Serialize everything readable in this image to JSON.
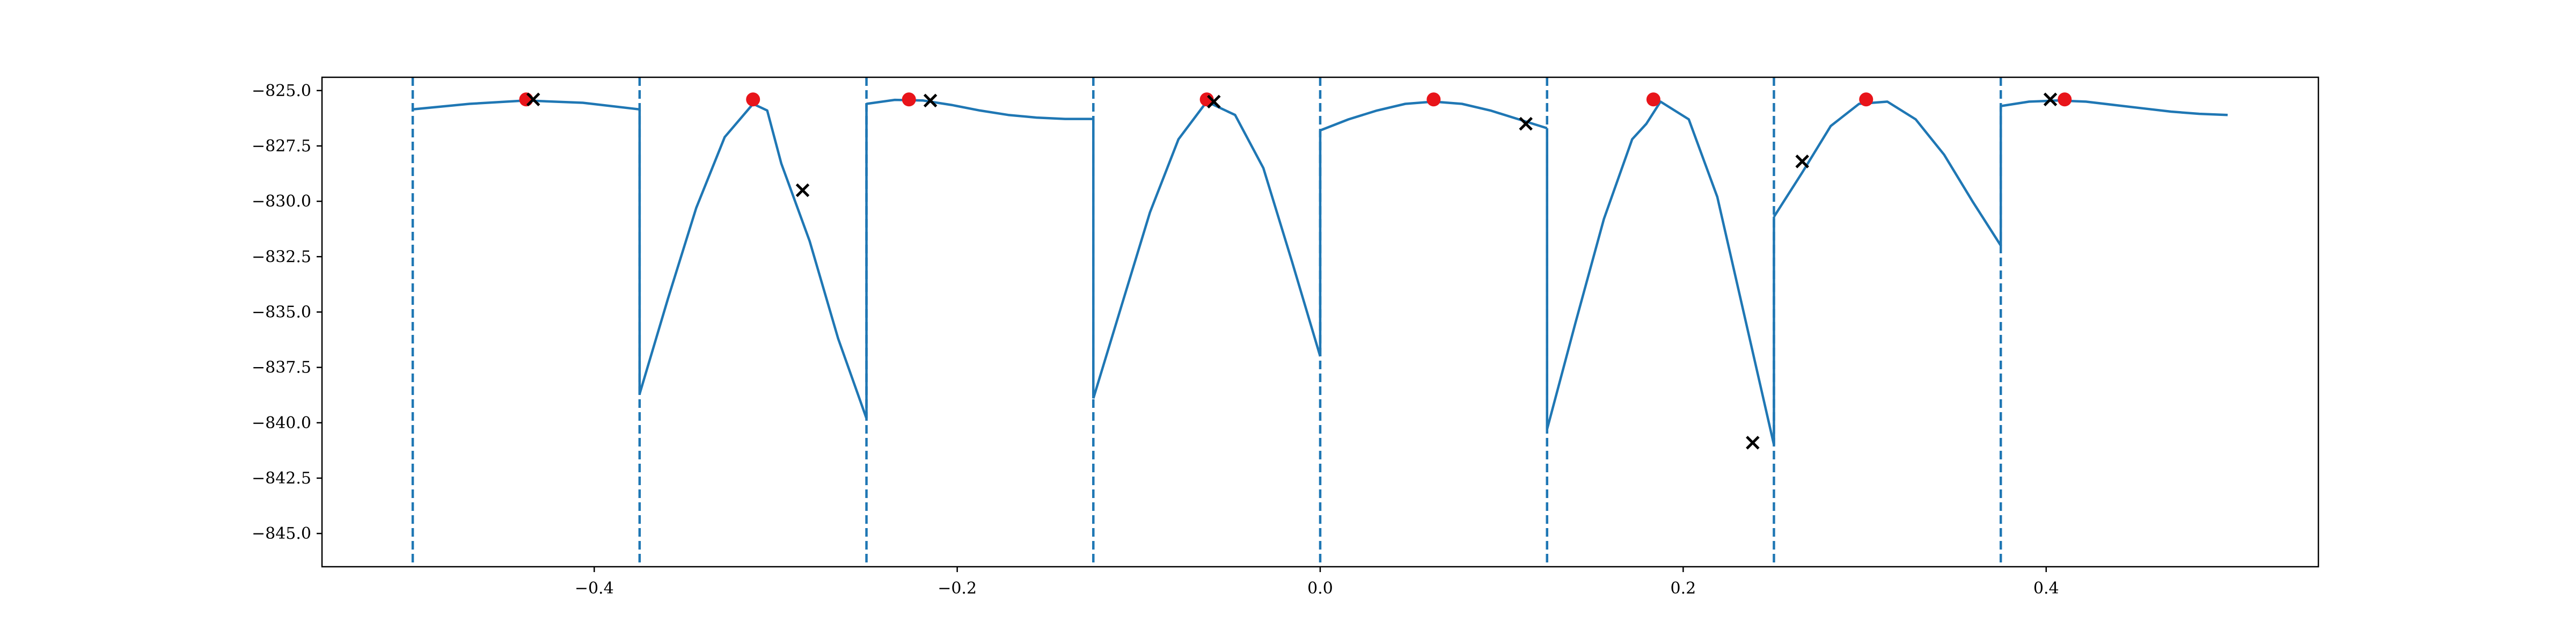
{
  "chart_data": {
    "type": "line",
    "title": "",
    "xlabel": "",
    "ylabel": "",
    "xlim": [
      -0.55,
      0.55
    ],
    "ylim": [
      -846.5,
      -824.4
    ],
    "grid": false,
    "x_ticks": [
      -0.4,
      -0.2,
      0.0,
      0.2,
      0.4
    ],
    "x_tick_labels": [
      "−0.4",
      "−0.2",
      "0.0",
      "0.2",
      "0.4"
    ],
    "y_ticks": [
      -825.0,
      -827.5,
      -830.0,
      -832.5,
      -835.0,
      -837.5,
      -840.0,
      -842.5,
      -845.0
    ],
    "y_tick_labels": [
      "−825.0",
      "−827.5",
      "−830.0",
      "−832.5",
      "−835.0",
      "−837.5",
      "−840.0",
      "−842.5",
      "−845.0"
    ],
    "colors": {
      "line": "#1f77b4",
      "dot": "#e8141a",
      "cross": "#000000"
    },
    "vlines": [
      -0.5,
      -0.375,
      -0.25,
      -0.125,
      0.0,
      0.125,
      0.25,
      0.375
    ],
    "segments": [
      {
        "x": [
          -0.5,
          -0.4688,
          -0.4375,
          -0.4063,
          -0.375
        ],
        "y": [
          -825.85,
          -825.6,
          -825.45,
          -825.55,
          -825.85
        ]
      },
      {
        "x": [
          -0.375,
          -0.3594,
          -0.3438,
          -0.3281,
          -0.3125,
          -0.3047,
          -0.2969,
          -0.2813,
          -0.2656,
          -0.25
        ],
        "y": [
          -838.7,
          -834.4,
          -830.3,
          -827.1,
          -825.6,
          -825.9,
          -828.3,
          -831.8,
          -836.2,
          -839.8
        ]
      },
      {
        "x": [
          -0.25,
          -0.2344,
          -0.2188,
          -0.2031,
          -0.1875,
          -0.1719,
          -0.1563,
          -0.1406,
          -0.125
        ],
        "y": [
          -825.6,
          -825.42,
          -825.45,
          -825.65,
          -825.9,
          -826.1,
          -826.22,
          -826.28,
          -826.28
        ]
      },
      {
        "x": [
          -0.125,
          -0.1094,
          -0.0938,
          -0.0781,
          -0.0625,
          -0.0469,
          -0.0313,
          -0.0156,
          0.0
        ],
        "y": [
          -838.9,
          -834.7,
          -830.5,
          -827.2,
          -825.5,
          -826.1,
          -828.5,
          -832.7,
          -837.0
        ]
      },
      {
        "x": [
          0.0,
          0.0156,
          0.0313,
          0.0469,
          0.0625,
          0.0781,
          0.0938,
          0.1094,
          0.125
        ],
        "y": [
          -826.8,
          -826.3,
          -825.9,
          -825.6,
          -825.5,
          -825.6,
          -825.9,
          -826.3,
          -826.7
        ]
      },
      {
        "x": [
          0.125,
          0.1406,
          0.1563,
          0.1719,
          0.1797,
          0.1875,
          0.2031,
          0.2188,
          0.2344,
          0.25
        ],
        "y": [
          -840.3,
          -835.5,
          -830.8,
          -827.2,
          -826.5,
          -825.5,
          -826.3,
          -829.8,
          -835.4,
          -841.0
        ]
      },
      {
        "x": [
          0.25,
          0.2656,
          0.2813,
          0.2969,
          0.3125,
          0.3281,
          0.3438,
          0.3594,
          0.375
        ],
        "y": [
          -830.7,
          -828.7,
          -826.6,
          -825.6,
          -825.5,
          -826.3,
          -827.9,
          -830.0,
          -832.0
        ]
      },
      {
        "x": [
          0.375,
          0.3906,
          0.4063,
          0.4219,
          0.4375,
          0.4531,
          0.4688,
          0.4844,
          0.5
        ],
        "y": [
          -825.7,
          -825.5,
          -825.45,
          -825.5,
          -825.65,
          -825.8,
          -825.95,
          -826.05,
          -826.1
        ]
      }
    ],
    "dots": [
      {
        "x": -0.4375,
        "y": -825.4
      },
      {
        "x": -0.3125,
        "y": -825.4
      },
      {
        "x": -0.2266,
        "y": -825.4
      },
      {
        "x": -0.0625,
        "y": -825.4
      },
      {
        "x": 0.0625,
        "y": -825.4
      },
      {
        "x": 0.1836,
        "y": -825.4
      },
      {
        "x": 0.3008,
        "y": -825.4
      },
      {
        "x": 0.4102,
        "y": -825.4
      }
    ],
    "crosses": [
      {
        "x": -0.4336,
        "y": -825.4
      },
      {
        "x": -0.2852,
        "y": -829.5
      },
      {
        "x": -0.2148,
        "y": -825.45
      },
      {
        "x": -0.0586,
        "y": -825.5
      },
      {
        "x": 0.1133,
        "y": -826.5
      },
      {
        "x": 0.2383,
        "y": -840.9
      },
      {
        "x": 0.2656,
        "y": -828.2
      },
      {
        "x": 0.4023,
        "y": -825.4
      }
    ]
  }
}
